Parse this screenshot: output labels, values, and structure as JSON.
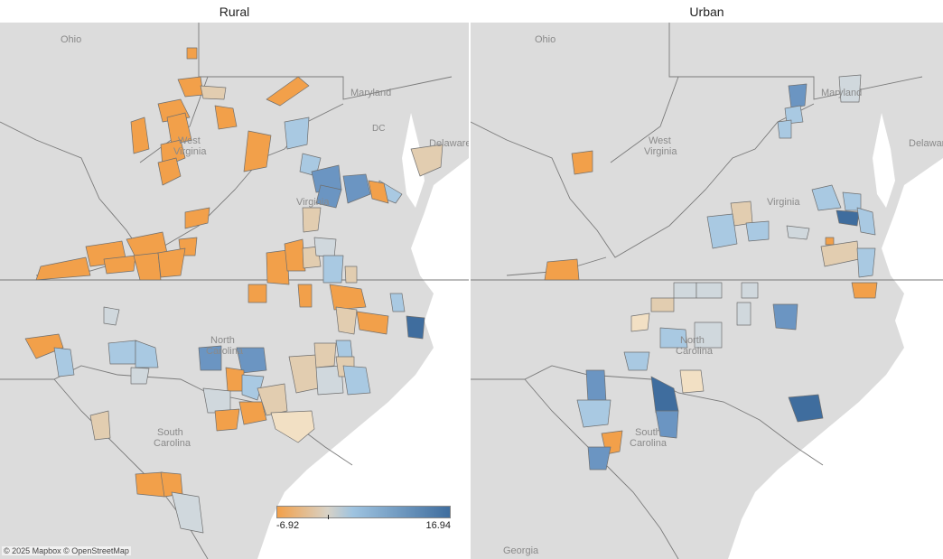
{
  "panels": [
    {
      "title": "Rural",
      "labels": [
        "Ohio",
        "West",
        "Virginia",
        "Maryland",
        "DC",
        "Delaware",
        "Virginia",
        "North",
        "Carolina",
        "South",
        "Carolina"
      ]
    },
    {
      "title": "Urban",
      "labels": [
        "Ohio",
        "West",
        "Virginia",
        "Maryland",
        "Delaware",
        "Virginia",
        "North",
        "Carolina",
        "South",
        "Carolina",
        "Georgia"
      ]
    }
  ],
  "legend": {
    "min_label": "-6.92",
    "max_label": "16.94",
    "min_value": -6.92,
    "max_value": 16.94,
    "midpoint": 0,
    "colors": {
      "negative": "#f2a04a",
      "neutral": "#d8d2c6",
      "positive": "#3f6d9e"
    }
  },
  "attribution": "© 2025 Mapbox © OpenStreetMap"
}
